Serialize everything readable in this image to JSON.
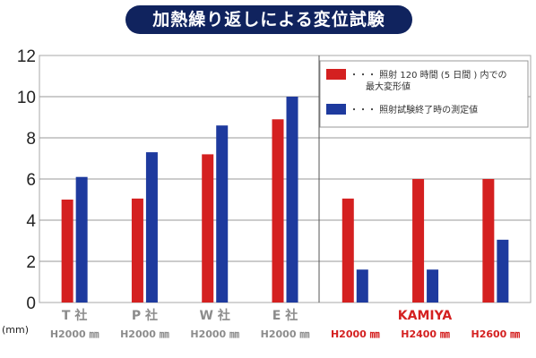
{
  "chart_data": {
    "type": "bar",
    "title": "加熱繰り返しによる変位試験",
    "ylabel": "(mm)",
    "ylim": [
      0,
      12
    ],
    "yticks": [
      0,
      2,
      4,
      6,
      8,
      10,
      12
    ],
    "grid": true,
    "legend_position": "top-right",
    "categories": [
      {
        "name": "T 社",
        "model": "H2000",
        "unit": "㎜",
        "highlight": false
      },
      {
        "name": "P 社",
        "model": "H2000",
        "unit": "㎜",
        "highlight": false
      },
      {
        "name": "W 社",
        "model": "H2000",
        "unit": "㎜",
        "highlight": false
      },
      {
        "name": "E 社",
        "model": "H2000",
        "unit": "㎜",
        "highlight": false
      },
      {
        "name": "",
        "model": "H2000",
        "unit": "㎜",
        "highlight": true
      },
      {
        "name": "",
        "model": "H2400",
        "unit": "㎜",
        "highlight": true
      },
      {
        "name": "",
        "model": "H2600",
        "unit": "㎜",
        "highlight": true
      }
    ],
    "group_label": "KAMIYA",
    "series": [
      {
        "name": "・・・ 照射 120 時間 (5 日間 ) 内での",
        "name2": "最大変形値",
        "color": "#d42020",
        "values": [
          5.0,
          5.05,
          7.2,
          8.9,
          5.05,
          6.0,
          6.0
        ]
      },
      {
        "name": "・・・ 照射試験終了時の測定値",
        "name2": "",
        "color": "#1e3a9e",
        "values": [
          6.1,
          7.3,
          8.6,
          10.0,
          1.6,
          1.6,
          3.05
        ]
      }
    ]
  }
}
